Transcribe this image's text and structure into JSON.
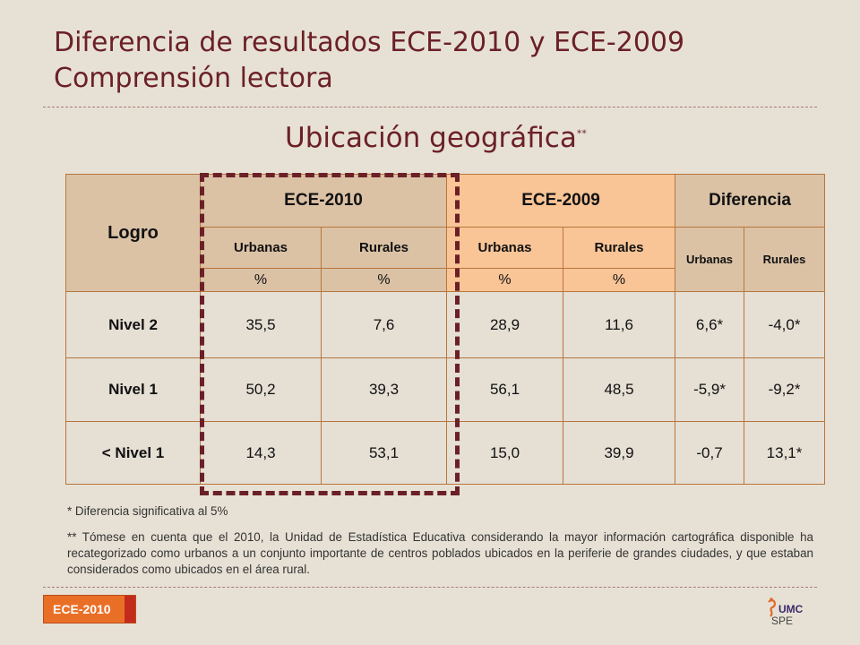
{
  "title": {
    "line1": "Diferencia de resultados ECE-2010 y ECE-2009",
    "line2": "Comprensión lectora"
  },
  "subtitle": {
    "text": "Ubicación geográfica",
    "mark": "**"
  },
  "table": {
    "logro_header": "Logro",
    "groups": [
      "ECE-2010",
      "ECE-2009",
      "Diferencia"
    ],
    "subheaders": [
      "Urbanas",
      "Rurales",
      "Urbanas",
      "Rurales",
      "Urbanas",
      "Rurales"
    ],
    "unit": "%",
    "rows": [
      {
        "level": "Nivel 2",
        "values": [
          "35,5",
          "7,6",
          "28,9",
          "11,6",
          "6,6*",
          "-4,0*"
        ]
      },
      {
        "level": "Nivel 1",
        "values": [
          "50,2",
          "39,3",
          "56,1",
          "48,5",
          "-5,9*",
          "-9,2*"
        ]
      },
      {
        "level": "< Nivel 1",
        "values": [
          "14,3",
          "53,1",
          "15,0",
          "39,9",
          "-0,7",
          "13,1*"
        ]
      }
    ]
  },
  "notes": {
    "note1": "* Diferencia significativa al 5%",
    "note2": "** Tómese en cuenta que el 2010, la Unidad de Estadística Educativa considerando la mayor información cartográfica disponible ha recategorizado como urbanos a un conjunto importante de centros poblados ubicados en la periferie de grandes ciudades, y que estaban considerados como ubicados en el área rural."
  },
  "footer": {
    "badge": "ECE-2010",
    "logo_label": "UMC",
    "logo_sub": "SPE",
    "colors": {
      "badge": "#ea6f26",
      "accent": "#6b2027"
    }
  }
}
